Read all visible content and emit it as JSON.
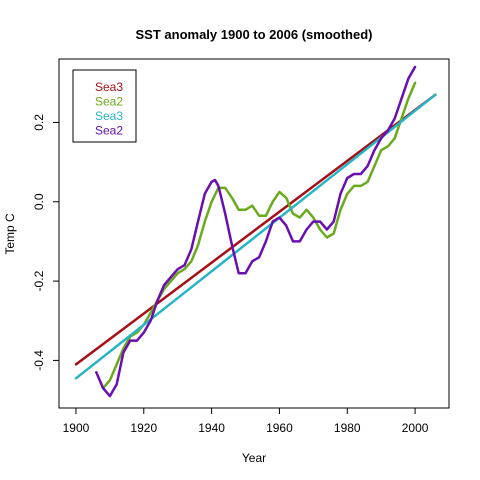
{
  "chart_data": {
    "type": "line",
    "title": "SST anomaly  1900  to  2006 (smoothed)",
    "xlabel": "Year",
    "ylabel": "Temp C",
    "xlim": [
      1895,
      2010
    ],
    "ylim": [
      -0.52,
      0.36
    ],
    "xticks": [
      1900,
      1920,
      1940,
      1960,
      1980,
      2000
    ],
    "yticks": [
      -0.4,
      -0.2,
      0.0,
      0.2
    ],
    "ytick_labels": [
      "-0.4",
      "-0.2",
      "0.0",
      "0.2"
    ],
    "grid": false,
    "legend_position": "top-left",
    "series": [
      {
        "name": "Sea3",
        "color": "#a50f15",
        "x": [
          1900,
          2006
        ],
        "y": [
          -0.41,
          0.27
        ]
      },
      {
        "name": "Sea2",
        "color": "#6aaa1c",
        "x": [
          1908,
          1910,
          1912,
          1914,
          1916,
          1918,
          1920,
          1922,
          1924,
          1926,
          1928,
          1930,
          1932,
          1934,
          1936,
          1938,
          1940,
          1942,
          1944,
          1946,
          1948,
          1950,
          1952,
          1954,
          1956,
          1958,
          1960,
          1962,
          1964,
          1966,
          1968,
          1970,
          1972,
          1974,
          1976,
          1978,
          1980,
          1982,
          1984,
          1986,
          1988,
          1990,
          1992,
          1994,
          1996,
          1998,
          2000
        ],
        "y": [
          -0.47,
          -0.45,
          -0.41,
          -0.37,
          -0.34,
          -0.33,
          -0.31,
          -0.28,
          -0.25,
          -0.22,
          -0.2,
          -0.18,
          -0.17,
          -0.15,
          -0.11,
          -0.05,
          0.0,
          0.035,
          0.035,
          0.01,
          -0.02,
          -0.02,
          -0.01,
          -0.035,
          -0.035,
          0.0,
          0.025,
          0.01,
          -0.03,
          -0.04,
          -0.02,
          -0.04,
          -0.07,
          -0.09,
          -0.08,
          -0.02,
          0.02,
          0.04,
          0.04,
          0.05,
          0.09,
          0.13,
          0.14,
          0.16,
          0.21,
          0.26,
          0.3
        ]
      },
      {
        "name": "Sea3",
        "color": "#26b5c6",
        "x": [
          1900,
          2006
        ],
        "y": [
          -0.445,
          0.27
        ]
      },
      {
        "name": "Sea2",
        "color": "#6a0fb0",
        "x": [
          1906,
          1908,
          1910,
          1912,
          1914,
          1916,
          1918,
          1920,
          1922,
          1924,
          1926,
          1928,
          1930,
          1932,
          1934,
          1936,
          1938,
          1940,
          1941,
          1942,
          1944,
          1946,
          1948,
          1950,
          1952,
          1954,
          1956,
          1958,
          1960,
          1962,
          1964,
          1966,
          1968,
          1970,
          1972,
          1974,
          1976,
          1978,
          1980,
          1982,
          1984,
          1986,
          1988,
          1990,
          1992,
          1994,
          1996,
          1998,
          2000
        ],
        "y": [
          -0.43,
          -0.47,
          -0.49,
          -0.46,
          -0.38,
          -0.35,
          -0.35,
          -0.33,
          -0.3,
          -0.25,
          -0.21,
          -0.19,
          -0.17,
          -0.16,
          -0.12,
          -0.05,
          0.02,
          0.05,
          0.055,
          0.04,
          -0.03,
          -0.11,
          -0.18,
          -0.18,
          -0.15,
          -0.14,
          -0.1,
          -0.05,
          -0.04,
          -0.06,
          -0.1,
          -0.1,
          -0.07,
          -0.05,
          -0.05,
          -0.07,
          -0.05,
          0.02,
          0.06,
          0.07,
          0.07,
          0.09,
          0.13,
          0.16,
          0.18,
          0.21,
          0.26,
          0.31,
          0.34
        ]
      }
    ]
  }
}
